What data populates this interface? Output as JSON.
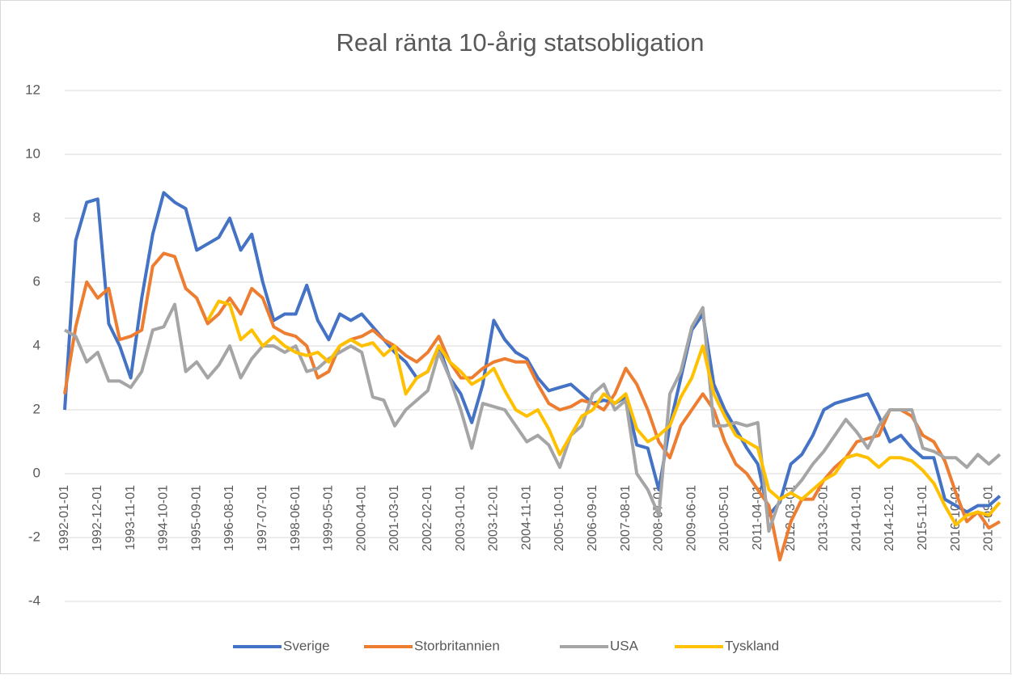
{
  "chart_data": {
    "type": "line",
    "title": "Real ränta 10-årig statsobligation",
    "categories": [
      "1992-01-01",
      null,
      null,
      "1992-12-01",
      null,
      null,
      "1993-11-01",
      null,
      null,
      "1994-10-01",
      null,
      null,
      "1995-09-01",
      null,
      null,
      "1996-08-01",
      null,
      null,
      "1997-07-01",
      null,
      null,
      "1998-06-01",
      null,
      null,
      "1999-05-01",
      null,
      null,
      "2000-04-01",
      null,
      null,
      "2001-03-01",
      null,
      null,
      "2002-02-01",
      null,
      null,
      "2003-01-01",
      null,
      null,
      "2003-12-01",
      null,
      null,
      "2004-11-01",
      null,
      null,
      "2005-10-01",
      null,
      null,
      "2006-09-01",
      null,
      null,
      "2007-08-01",
      null,
      null,
      "2008-07-01",
      null,
      null,
      "2009-06-01",
      null,
      null,
      "2010-05-01",
      null,
      null,
      "2011-04-01",
      null,
      null,
      "2012-03-01",
      null,
      null,
      "2013-02-01",
      null,
      null,
      "2014-01-01",
      null,
      null,
      "2014-12-01",
      null,
      null,
      "2015-11-01",
      null,
      null,
      "2016-10-01",
      null,
      null,
      "2017-09-01",
      null
    ],
    "series": [
      {
        "name": "Sverige",
        "color": "#4472c4",
        "values": [
          2.0,
          7.3,
          8.5,
          8.6,
          4.7,
          4.0,
          3.0,
          5.5,
          7.5,
          8.8,
          8.5,
          8.3,
          7.0,
          7.2,
          7.4,
          8.0,
          7.0,
          7.5,
          6.0,
          4.8,
          5.0,
          5.0,
          5.9,
          4.8,
          4.2,
          5.0,
          4.8,
          5.0,
          4.6,
          4.2,
          3.8,
          3.5,
          3.0,
          3.2,
          4.0,
          3.0,
          2.5,
          1.6,
          2.8,
          4.8,
          4.2,
          3.8,
          3.6,
          3.0,
          2.6,
          2.7,
          2.8,
          2.5,
          2.2,
          2.3,
          2.2,
          2.4,
          0.9,
          0.8,
          -0.5,
          1.5,
          3.0,
          4.5,
          5.0,
          2.8,
          2.0,
          1.4,
          0.8,
          0.3,
          -1.3,
          -0.9,
          0.3,
          0.6,
          1.2,
          2.0,
          2.2,
          2.3,
          2.4,
          2.5,
          1.8,
          1.0,
          1.2,
          0.8,
          0.5,
          0.5,
          -0.8,
          -1.0,
          -1.2,
          -1.0,
          -1.0,
          -0.7
        ]
      },
      {
        "name": "Storbritannien",
        "color": "#ed7d31",
        "values": [
          2.5,
          4.6,
          6.0,
          5.5,
          5.8,
          4.2,
          4.3,
          4.5,
          6.5,
          6.9,
          6.8,
          5.8,
          5.5,
          4.7,
          5.0,
          5.5,
          5.0,
          5.8,
          5.5,
          4.6,
          4.4,
          4.3,
          4.0,
          3.0,
          3.2,
          4.0,
          4.2,
          4.3,
          4.5,
          4.2,
          4.0,
          3.7,
          3.5,
          3.8,
          4.3,
          3.5,
          3.0,
          3.0,
          3.3,
          3.5,
          3.6,
          3.5,
          3.5,
          2.8,
          2.2,
          2.0,
          2.1,
          2.3,
          2.2,
          2.0,
          2.5,
          3.3,
          2.8,
          2.0,
          1.0,
          0.5,
          1.5,
          2.0,
          2.5,
          2.0,
          1.0,
          0.3,
          0.0,
          -0.5,
          -1.0,
          -2.7,
          -1.5,
          -0.8,
          -0.8,
          -0.2,
          0.2,
          0.5,
          1.0,
          1.1,
          1.2,
          2.0,
          2.0,
          1.8,
          1.2,
          1.0,
          0.4,
          -0.6,
          -1.5,
          -1.2,
          -1.7,
          -1.5
        ]
      },
      {
        "name": "USA",
        "color": "#a5a5a5",
        "values": [
          4.5,
          4.3,
          3.5,
          3.8,
          2.9,
          2.9,
          2.7,
          3.2,
          4.5,
          4.6,
          5.3,
          3.2,
          3.5,
          3.0,
          3.4,
          4.0,
          3.0,
          3.6,
          4.0,
          4.0,
          3.8,
          4.0,
          3.2,
          3.3,
          3.6,
          3.8,
          4.0,
          3.8,
          2.4,
          2.3,
          1.5,
          2.0,
          2.3,
          2.6,
          3.8,
          3.0,
          2.0,
          0.8,
          2.2,
          2.1,
          2.0,
          1.5,
          1.0,
          1.2,
          0.9,
          0.2,
          1.2,
          1.5,
          2.5,
          2.8,
          2.0,
          2.3,
          0.0,
          -0.5,
          -1.3,
          2.5,
          3.2,
          4.6,
          5.2,
          1.5,
          1.5,
          1.6,
          1.5,
          1.6,
          -1.8,
          -0.8,
          -0.6,
          -0.2,
          0.3,
          0.7,
          1.2,
          1.7,
          1.3,
          0.8,
          1.5,
          2.0,
          2.0,
          2.0,
          0.8,
          0.7,
          0.5,
          0.5,
          0.2,
          0.6,
          0.3,
          0.6
        ]
      },
      {
        "name": "Tyskland",
        "color": "#ffc000",
        "values": [
          null,
          null,
          null,
          null,
          null,
          null,
          null,
          null,
          null,
          null,
          null,
          null,
          null,
          4.8,
          5.4,
          5.3,
          4.2,
          4.5,
          4.0,
          4.3,
          4.0,
          3.8,
          3.7,
          3.8,
          3.5,
          4.0,
          4.2,
          4.0,
          4.1,
          3.7,
          4.0,
          2.5,
          3.0,
          3.2,
          4.0,
          3.5,
          3.2,
          2.8,
          3.0,
          3.3,
          2.6,
          2.0,
          1.8,
          2.0,
          1.4,
          0.6,
          1.2,
          1.8,
          2.0,
          2.5,
          2.2,
          2.5,
          1.4,
          1.0,
          1.2,
          1.5,
          2.4,
          3.0,
          4.0,
          2.5,
          1.8,
          1.2,
          1.0,
          0.8,
          -0.5,
          -0.8,
          -0.6,
          -0.8,
          -0.5,
          -0.2,
          0.0,
          0.5,
          0.6,
          0.5,
          0.2,
          0.5,
          0.5,
          0.4,
          0.1,
          -0.3,
          -1.0,
          -1.6,
          -1.3,
          -1.2,
          -1.3,
          -0.9
        ]
      }
    ],
    "ylim": [
      -4,
      12
    ],
    "yticks": [
      -4,
      -2,
      0,
      2,
      4,
      6,
      8,
      10,
      12
    ],
    "grid": true,
    "legend": "bottom"
  }
}
